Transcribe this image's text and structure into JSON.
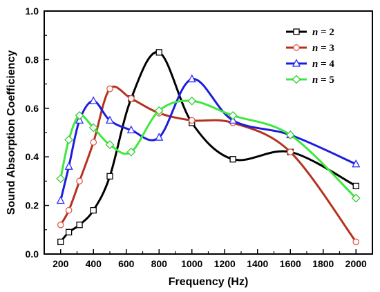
{
  "chart_data": {
    "type": "line",
    "xlabel": "Frequency (Hz)",
    "ylabel": "Sound Absorption Coefficiency",
    "xlim": [
      100,
      2100
    ],
    "ylim": [
      0.0,
      1.0
    ],
    "xticks": [
      200,
      400,
      600,
      800,
      1000,
      1200,
      1400,
      1600,
      1800,
      2000
    ],
    "xtick_labels": [
      "200",
      "400",
      "600",
      "800",
      "1000",
      "1200",
      "1400",
      "1600",
      "1800",
      "2000"
    ],
    "yticks": [
      0.0,
      0.2,
      0.4,
      0.6,
      0.8,
      1.0
    ],
    "ytick_labels": [
      "0.0",
      "0.2",
      "0.4",
      "0.6",
      "0.8",
      "1.0"
    ],
    "grid": false,
    "legend_position": "top-right",
    "series": [
      {
        "name": "n = 2",
        "name_var": "n",
        "name_value": "= 2",
        "color": "#000000",
        "marker": "square",
        "marker_color": "#000000",
        "points": [
          [
            200,
            0.05
          ],
          [
            250,
            0.09
          ],
          [
            315,
            0.12
          ],
          [
            400,
            0.18
          ],
          [
            500,
            0.32
          ],
          [
            630,
            0.64
          ],
          [
            800,
            0.83
          ],
          [
            1000,
            0.54
          ],
          [
            1250,
            0.39
          ],
          [
            1600,
            0.42
          ],
          [
            2000,
            0.28
          ]
        ]
      },
      {
        "name": "n = 3",
        "name_var": "n",
        "name_value": "= 3",
        "color": "#b5311e",
        "marker": "circle",
        "marker_color": "#e05a4a",
        "points": [
          [
            200,
            0.12
          ],
          [
            250,
            0.18
          ],
          [
            315,
            0.3
          ],
          [
            400,
            0.46
          ],
          [
            500,
            0.68
          ],
          [
            630,
            0.64
          ],
          [
            800,
            0.58
          ],
          [
            1000,
            0.55
          ],
          [
            1250,
            0.54
          ],
          [
            1600,
            0.42
          ],
          [
            2000,
            0.05
          ]
        ]
      },
      {
        "name": "n = 4",
        "name_var": "n",
        "name_value": "= 4",
        "color": "#1c1cdc",
        "marker": "triangle",
        "marker_color": "#2a2aff",
        "points": [
          [
            200,
            0.22
          ],
          [
            250,
            0.36
          ],
          [
            315,
            0.55
          ],
          [
            400,
            0.63
          ],
          [
            500,
            0.55
          ],
          [
            630,
            0.51
          ],
          [
            800,
            0.48
          ],
          [
            1000,
            0.72
          ],
          [
            1250,
            0.55
          ],
          [
            1600,
            0.49
          ],
          [
            2000,
            0.37
          ]
        ]
      },
      {
        "name": "n = 5",
        "name_var": "n",
        "name_value": "= 5",
        "color": "#3ee83e",
        "marker": "diamond",
        "marker_color": "#33cc33",
        "points": [
          [
            200,
            0.31
          ],
          [
            250,
            0.47
          ],
          [
            315,
            0.57
          ],
          [
            400,
            0.52
          ],
          [
            500,
            0.45
          ],
          [
            630,
            0.42
          ],
          [
            800,
            0.59
          ],
          [
            1000,
            0.63
          ],
          [
            1250,
            0.57
          ],
          [
            1600,
            0.49
          ],
          [
            2000,
            0.23
          ]
        ]
      }
    ]
  }
}
